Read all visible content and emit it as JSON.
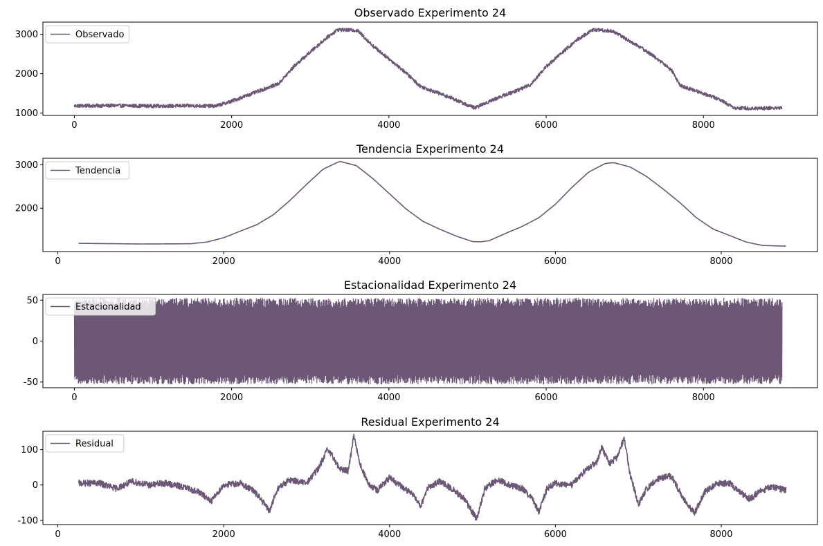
{
  "figure": {
    "line_color": "#6c5776"
  },
  "chart_data": [
    {
      "type": "line",
      "title": "Observado Experimento 24",
      "xlabel": "",
      "ylabel": "",
      "xlim": [
        -400,
        9450
      ],
      "ylim": [
        940,
        3310
      ],
      "xticks": [
        0,
        2000,
        4000,
        6000,
        8000
      ],
      "yticks": [
        1000,
        2000,
        3000
      ],
      "legend": "top-left",
      "grid": false,
      "series": [
        {
          "name": "Observado",
          "noise": 45,
          "points": [
            [
              0,
              1185
            ],
            [
              500,
              1190
            ],
            [
              1000,
              1180
            ],
            [
              1500,
              1185
            ],
            [
              1800,
              1180
            ],
            [
              2000,
              1300
            ],
            [
              2200,
              1450
            ],
            [
              2400,
              1600
            ],
            [
              2600,
              1750
            ],
            [
              2800,
              2200
            ],
            [
              3000,
              2550
            ],
            [
              3200,
              2900
            ],
            [
              3350,
              3120
            ],
            [
              3600,
              3100
            ],
            [
              3800,
              2700
            ],
            [
              4000,
              2380
            ],
            [
              4200,
              2050
            ],
            [
              4400,
              1680
            ],
            [
              4600,
              1530
            ],
            [
              4800,
              1380
            ],
            [
              5000,
              1200
            ],
            [
              5100,
              1130
            ],
            [
              5200,
              1230
            ],
            [
              5400,
              1400
            ],
            [
              5600,
              1550
            ],
            [
              5800,
              1720
            ],
            [
              6000,
              2180
            ],
            [
              6200,
              2530
            ],
            [
              6400,
              2870
            ],
            [
              6600,
              3120
            ],
            [
              6850,
              3080
            ],
            [
              7000,
              2900
            ],
            [
              7200,
              2670
            ],
            [
              7400,
              2400
            ],
            [
              7600,
              2080
            ],
            [
              7700,
              1700
            ],
            [
              8000,
              1500
            ],
            [
              8200,
              1350
            ],
            [
              8400,
              1130
            ],
            [
              8600,
              1120
            ],
            [
              9000,
              1130
            ]
          ]
        }
      ]
    },
    {
      "type": "line",
      "title": "Tendencia Experimento 24",
      "xlabel": "",
      "ylabel": "",
      "xlim": [
        -180,
        9160
      ],
      "ylim": [
        1000,
        3150
      ],
      "xticks": [
        0,
        2000,
        4000,
        6000,
        8000
      ],
      "yticks": [
        2000,
        3000
      ],
      "legend": "top-left",
      "grid": false,
      "series": [
        {
          "name": "Tendencia",
          "noise": 0,
          "points": [
            [
              250,
              1190
            ],
            [
              500,
              1185
            ],
            [
              1000,
              1175
            ],
            [
              1600,
              1180
            ],
            [
              1800,
              1220
            ],
            [
              2000,
              1320
            ],
            [
              2200,
              1470
            ],
            [
              2400,
              1620
            ],
            [
              2600,
              1850
            ],
            [
              2800,
              2180
            ],
            [
              3000,
              2550
            ],
            [
              3200,
              2900
            ],
            [
              3400,
              3080
            ],
            [
              3600,
              2980
            ],
            [
              3800,
              2680
            ],
            [
              4000,
              2330
            ],
            [
              4200,
              1980
            ],
            [
              4400,
              1700
            ],
            [
              4600,
              1520
            ],
            [
              4800,
              1360
            ],
            [
              5000,
              1230
            ],
            [
              5100,
              1225
            ],
            [
              5200,
              1250
            ],
            [
              5400,
              1420
            ],
            [
              5600,
              1580
            ],
            [
              5800,
              1780
            ],
            [
              6000,
              2090
            ],
            [
              6200,
              2480
            ],
            [
              6400,
              2830
            ],
            [
              6600,
              3030
            ],
            [
              6700,
              3050
            ],
            [
              6900,
              2950
            ],
            [
              7100,
              2730
            ],
            [
              7300,
              2440
            ],
            [
              7500,
              2130
            ],
            [
              7700,
              1780
            ],
            [
              7900,
              1520
            ],
            [
              8100,
              1370
            ],
            [
              8300,
              1220
            ],
            [
              8500,
              1140
            ],
            [
              8780,
              1125
            ]
          ]
        }
      ]
    },
    {
      "type": "line",
      "title": "Estacionalidad Experimento 24",
      "xlabel": "",
      "ylabel": "",
      "xlim": [
        -400,
        9450
      ],
      "ylim": [
        -57,
        57
      ],
      "xticks": [
        0,
        2000,
        4000,
        6000,
        8000
      ],
      "yticks": [
        -50,
        0,
        50
      ],
      "legend": "top-left",
      "grid": false,
      "series": [
        {
          "name": "Estacionalidad",
          "x_range": [
            0,
            9000
          ],
          "amplitude": 48
        }
      ]
    },
    {
      "type": "line",
      "title": "Residual Experimento 24",
      "xlabel": "",
      "ylabel": "",
      "xlim": [
        -180,
        9160
      ],
      "ylim": [
        -112,
        152
      ],
      "xticks": [
        0,
        2000,
        4000,
        6000,
        8000
      ],
      "yticks": [
        -100,
        0,
        100
      ],
      "legend": "top-left",
      "grid": false,
      "series": [
        {
          "name": "Residual",
          "noise": 9,
          "points": [
            [
              250,
              5
            ],
            [
              500,
              5
            ],
            [
              700,
              -10
            ],
            [
              900,
              10
            ],
            [
              1100,
              0
            ],
            [
              1300,
              5
            ],
            [
              1500,
              -5
            ],
            [
              1700,
              -20
            ],
            [
              1850,
              -45
            ],
            [
              2000,
              0
            ],
            [
              2200,
              5
            ],
            [
              2350,
              -15
            ],
            [
              2450,
              -40
            ],
            [
              2550,
              -75
            ],
            [
              2650,
              -10
            ],
            [
              2800,
              15
            ],
            [
              3000,
              5
            ],
            [
              3150,
              50
            ],
            [
              3250,
              100
            ],
            [
              3330,
              75
            ],
            [
              3400,
              45
            ],
            [
              3500,
              40
            ],
            [
              3570,
              140
            ],
            [
              3650,
              55
            ],
            [
              3750,
              0
            ],
            [
              3850,
              -15
            ],
            [
              4000,
              20
            ],
            [
              4150,
              -5
            ],
            [
              4300,
              -30
            ],
            [
              4380,
              -60
            ],
            [
              4450,
              -10
            ],
            [
              4600,
              10
            ],
            [
              4750,
              -10
            ],
            [
              4900,
              -40
            ],
            [
              5050,
              -95
            ],
            [
              5150,
              -10
            ],
            [
              5300,
              15
            ],
            [
              5450,
              0
            ],
            [
              5600,
              -10
            ],
            [
              5720,
              -40
            ],
            [
              5800,
              -75
            ],
            [
              5900,
              -10
            ],
            [
              6000,
              5
            ],
            [
              6200,
              0
            ],
            [
              6350,
              40
            ],
            [
              6500,
              65
            ],
            [
              6560,
              108
            ],
            [
              6650,
              60
            ],
            [
              6750,
              80
            ],
            [
              6830,
              135
            ],
            [
              6900,
              30
            ],
            [
              7000,
              -55
            ],
            [
              7100,
              -10
            ],
            [
              7250,
              20
            ],
            [
              7400,
              25
            ],
            [
              7500,
              -20
            ],
            [
              7600,
              -60
            ],
            [
              7680,
              -78
            ],
            [
              7800,
              -20
            ],
            [
              7950,
              5
            ],
            [
              8100,
              5
            ],
            [
              8250,
              -25
            ],
            [
              8350,
              -40
            ],
            [
              8450,
              -20
            ],
            [
              8600,
              -5
            ],
            [
              8780,
              -15
            ]
          ]
        }
      ]
    }
  ]
}
